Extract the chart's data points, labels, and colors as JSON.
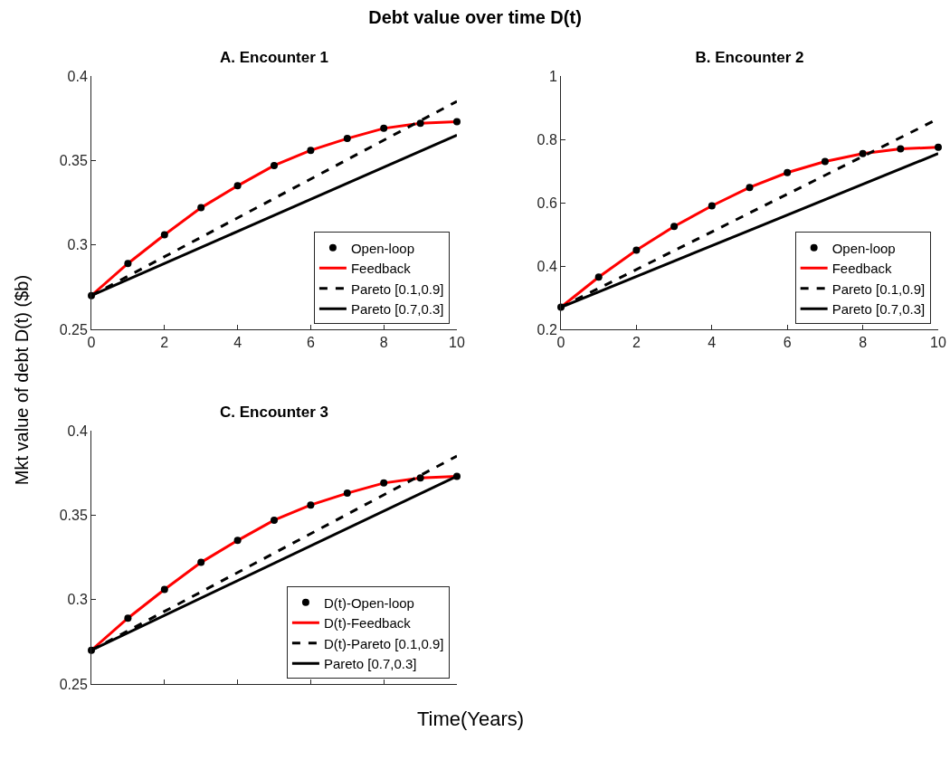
{
  "chart_data": [
    {
      "type": "line",
      "title": "A. Encounter 1",
      "annotations": [
        "Debt value over time D(t)"
      ],
      "ylabel": "Mkt value of debt D(t) ($b)",
      "xlim": [
        0,
        10
      ],
      "xticks": [
        0,
        2,
        4,
        6,
        8,
        10
      ],
      "ylim": [
        0.25,
        0.4
      ],
      "yticks": [
        0.25,
        0.3,
        0.35,
        0.4
      ],
      "legend": "bottom right",
      "series": [
        {
          "name": "Open-loop",
          "type": "scatter",
          "marker": "circle",
          "color": "#000000",
          "x": [
            0,
            1,
            2,
            3,
            4,
            5,
            6,
            7,
            8,
            9,
            10
          ],
          "values": [
            0.27,
            0.289,
            0.306,
            0.322,
            0.335,
            0.347,
            0.356,
            0.363,
            0.369,
            0.372,
            0.373
          ]
        },
        {
          "name": "Feedback",
          "type": "line",
          "line_style": "solid",
          "color": "#ff0000",
          "x": [
            0,
            1,
            2,
            3,
            4,
            5,
            6,
            7,
            8,
            9,
            10
          ],
          "values": [
            0.27,
            0.289,
            0.306,
            0.322,
            0.335,
            0.347,
            0.356,
            0.363,
            0.369,
            0.372,
            0.373
          ]
        },
        {
          "name": "Pareto [0.1,0.9]",
          "type": "line",
          "line_style": "dashed",
          "color": "#000000",
          "x": [
            0,
            10
          ],
          "values": [
            0.27,
            0.385
          ]
        },
        {
          "name": "Pareto [0.7,0.3]",
          "type": "line",
          "line_style": "solid",
          "color": "#000000",
          "x": [
            0,
            10
          ],
          "values": [
            0.27,
            0.365
          ]
        }
      ]
    },
    {
      "type": "line",
      "title": "B. Encounter 2",
      "xlim": [
        0,
        10
      ],
      "xticks": [
        0,
        2,
        4,
        6,
        8,
        10
      ],
      "ylim": [
        0.2,
        1
      ],
      "yticks": [
        0.2,
        0.4,
        0.6,
        0.8,
        1
      ],
      "legend": "bottom right",
      "series": [
        {
          "name": "Open-loop",
          "type": "scatter",
          "marker": "circle",
          "color": "#000000",
          "x": [
            0,
            1,
            2,
            3,
            4,
            5,
            6,
            7,
            8,
            9,
            10
          ],
          "values": [
            0.27,
            0.365,
            0.45,
            0.525,
            0.59,
            0.648,
            0.695,
            0.73,
            0.755,
            0.77,
            0.775
          ]
        },
        {
          "name": "Feedback",
          "type": "line",
          "line_style": "solid",
          "color": "#ff0000",
          "x": [
            0,
            1,
            2,
            3,
            4,
            5,
            6,
            7,
            8,
            9,
            10
          ],
          "values": [
            0.27,
            0.365,
            0.45,
            0.525,
            0.59,
            0.648,
            0.695,
            0.73,
            0.755,
            0.77,
            0.775
          ]
        },
        {
          "name": "Pareto [0.1,0.9]",
          "type": "line",
          "line_style": "dashed",
          "color": "#000000",
          "x": [
            0,
            10
          ],
          "values": [
            0.27,
            0.865
          ]
        },
        {
          "name": "Pareto [0.7,0.3]",
          "type": "line",
          "line_style": "solid",
          "color": "#000000",
          "x": [
            0,
            10
          ],
          "values": [
            0.27,
            0.755
          ]
        }
      ]
    },
    {
      "type": "line",
      "title": "C. Encounter 3",
      "xlabel": "Time(Years)",
      "xlim": [
        0,
        10
      ],
      "xticks": [
        0,
        2,
        4,
        6,
        8,
        10
      ],
      "ylim": [
        0.25,
        0.4
      ],
      "yticks": [
        0.25,
        0.3,
        0.35,
        0.4
      ],
      "tick_labels": "y",
      "legend": "bottom right",
      "series": [
        {
          "name": "D(t)-Open-loop",
          "type": "scatter",
          "marker": "circle",
          "color": "#000000",
          "x": [
            0,
            1,
            2,
            3,
            4,
            5,
            6,
            7,
            8,
            9,
            10
          ],
          "values": [
            0.27,
            0.289,
            0.306,
            0.322,
            0.335,
            0.347,
            0.356,
            0.363,
            0.369,
            0.372,
            0.373
          ]
        },
        {
          "name": "D(t)-Feedback",
          "type": "line",
          "line_style": "solid",
          "color": "#ff0000",
          "x": [
            0,
            1,
            2,
            3,
            4,
            5,
            6,
            7,
            8,
            9,
            10
          ],
          "values": [
            0.27,
            0.289,
            0.306,
            0.322,
            0.335,
            0.347,
            0.356,
            0.363,
            0.369,
            0.372,
            0.373
          ]
        },
        {
          "name": "D(t)-Pareto [0.1,0.9]",
          "type": "line",
          "line_style": "dashed",
          "color": "#000000",
          "x": [
            0,
            10
          ],
          "values": [
            0.27,
            0.385
          ]
        },
        {
          "name": "Pareto [0.7,0.3]",
          "type": "line",
          "line_style": "solid",
          "color": "#000000",
          "x": [
            0,
            10
          ],
          "values": [
            0.27,
            0.373
          ]
        }
      ]
    }
  ]
}
